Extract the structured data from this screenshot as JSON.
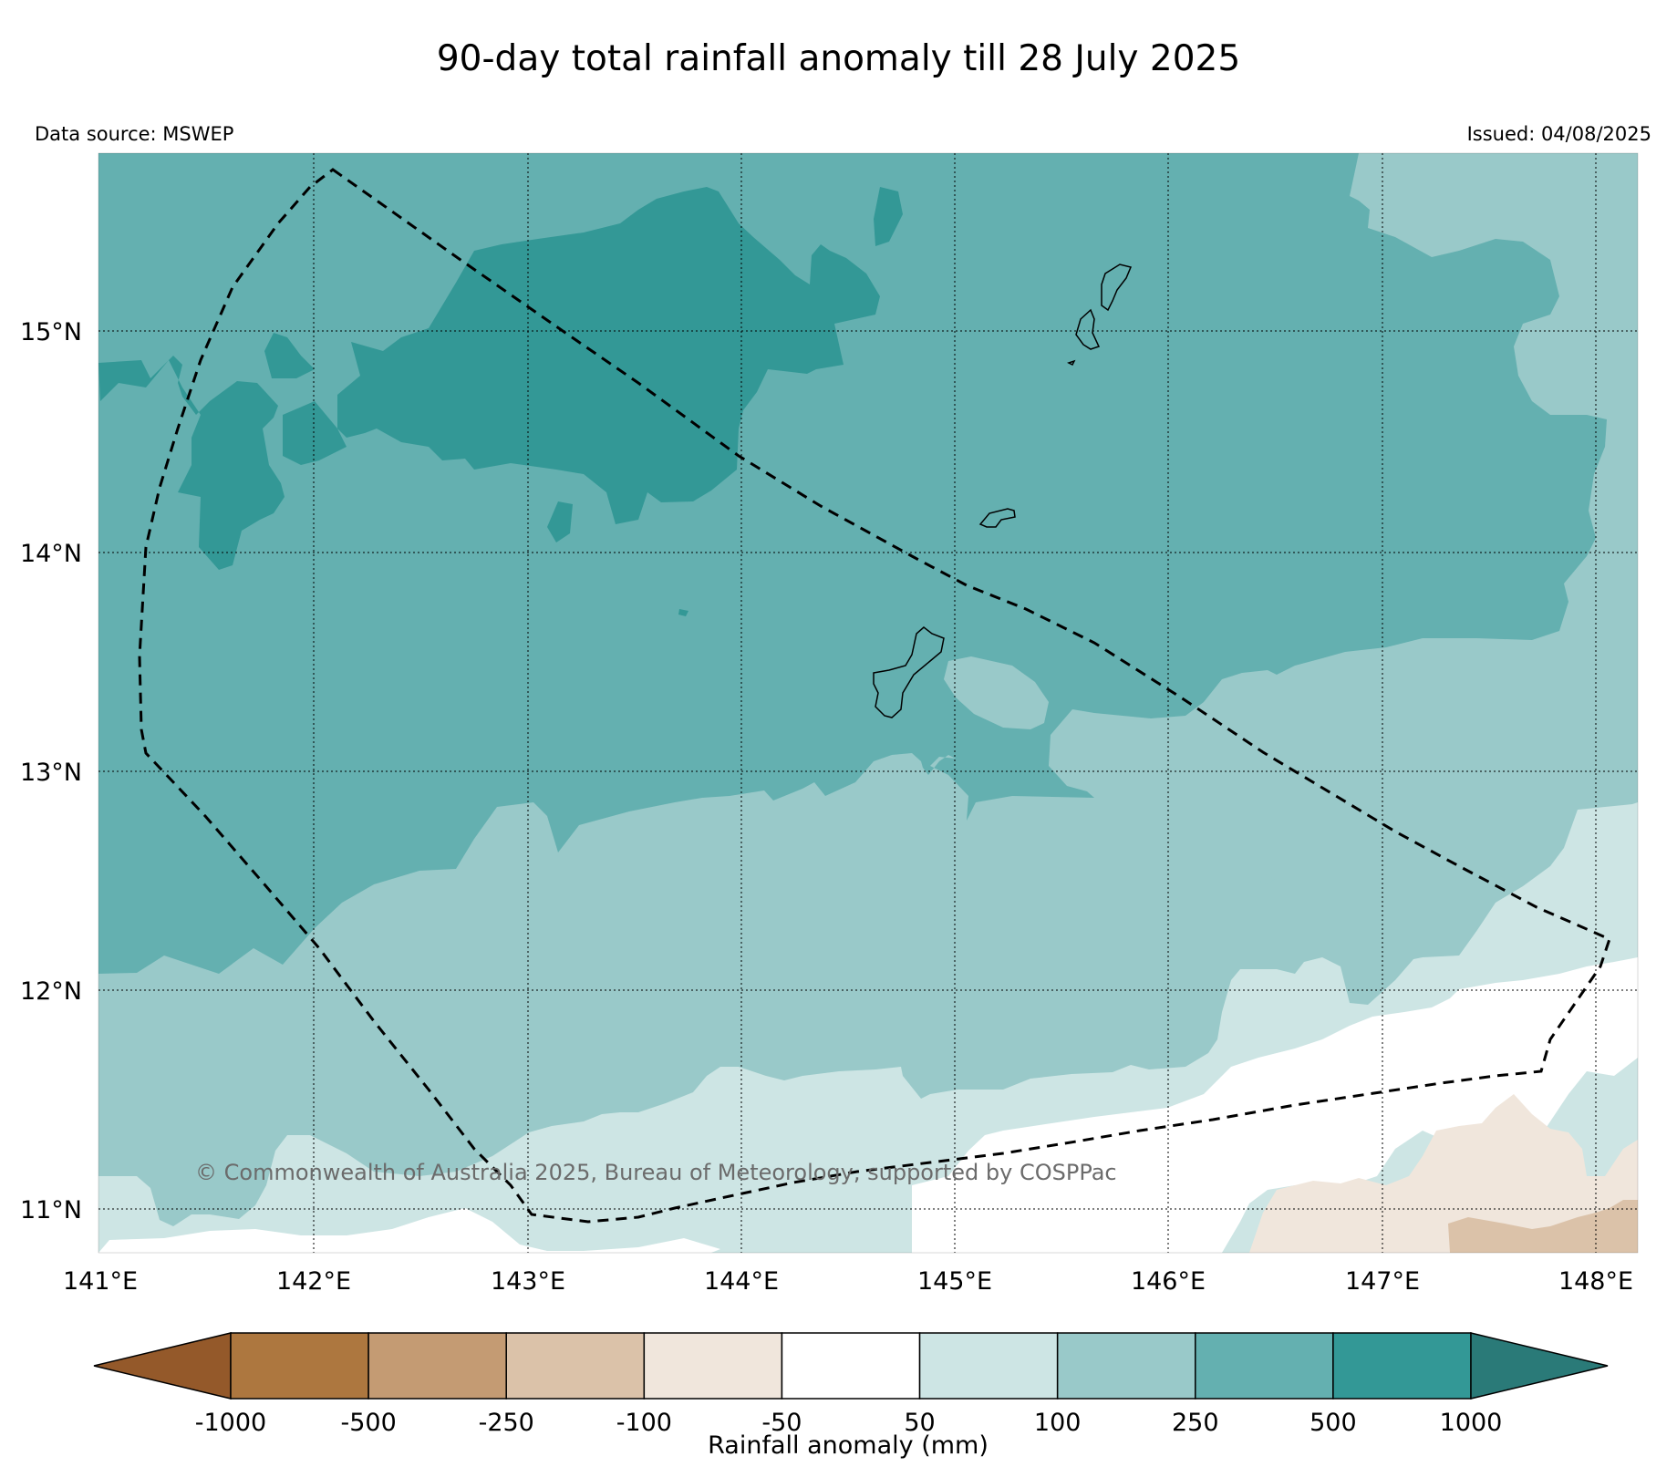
{
  "title": "90-day total rainfall anomaly till 28 July 2025",
  "data_source": "Data source: MSWEP",
  "issued": "Issued: 04/08/2025",
  "copyright": "© Commonwealth of Australia 2025, Bureau of Meteorology, supported by COSPPac",
  "map": {
    "lon_range": [
      141.0,
      148.2
    ],
    "lat_range": [
      10.8,
      15.8
    ],
    "lon_ticks": [
      "141°E",
      "142°E",
      "143°E",
      "144°E",
      "145°E",
      "146°E",
      "147°E",
      "148°E"
    ],
    "lat_ticks": [
      "11°N",
      "12°N",
      "13°N",
      "14°N",
      "15°N"
    ],
    "gridlines": "dotted"
  },
  "colorbar": {
    "label": "Rainfall anomaly (mm)",
    "tick_labels": [
      "-1000",
      "-500",
      "-250",
      "-100",
      "-50",
      "50",
      "100",
      "250",
      "500",
      "1000"
    ],
    "colors": [
      "#94592a",
      "#ad773f",
      "#c49b73",
      "#dbc2a9",
      "#f0e6dc",
      "#ffffff",
      "#cde5e4",
      "#99c9c9",
      "#64b0b0",
      "#339896",
      "#2a7a78"
    ],
    "extend": "both"
  },
  "legend_colors": {
    "lt_neg1000": "#94592a",
    "neg1000_neg500": "#ad773f",
    "neg500_neg250": "#c49b73",
    "neg250_neg100": "#dbc2a9",
    "neg100_neg50": "#f0e6dc",
    "neg50_50": "#ffffff",
    "50_100": "#cde5e4",
    "100_250": "#99c9c9",
    "250_500": "#64b0b0",
    "500_1000": "#339896",
    "gt_1000": "#2a7a78"
  }
}
